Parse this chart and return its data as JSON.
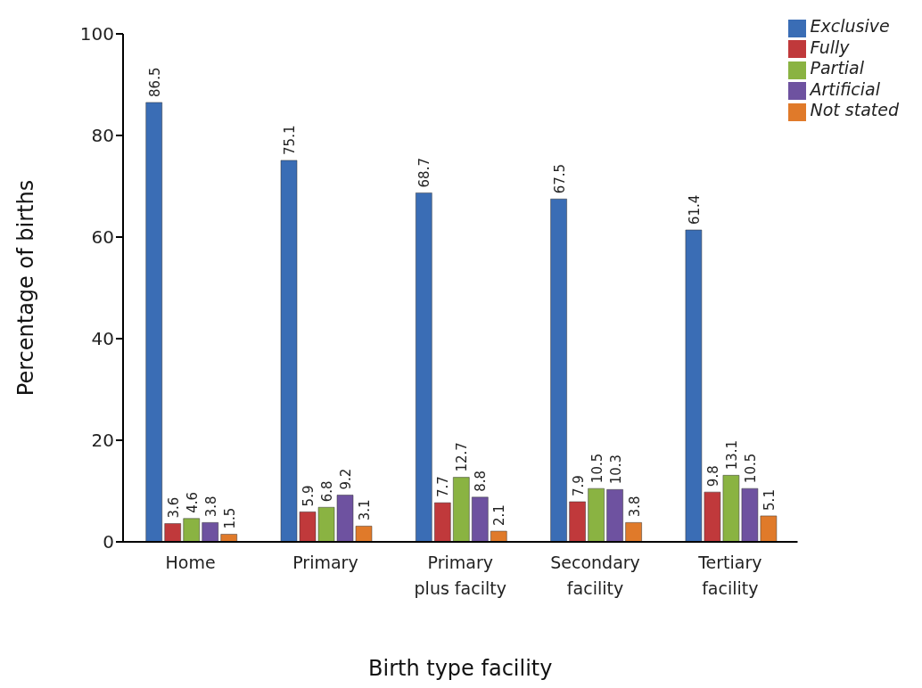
{
  "chart_data": {
    "type": "bar",
    "xlabel": "Birth type facility",
    "ylabel": "Percentage of births",
    "categories": [
      "Home",
      "Primary",
      "Primary plus facilty",
      "Secondary facility",
      "Tertiary facility"
    ],
    "series": [
      {
        "name": "Exclusive",
        "color": "#3a6db5",
        "values": [
          86.5,
          75.1,
          68.7,
          67.5,
          61.4
        ]
      },
      {
        "name": "Fully",
        "color": "#c0393b",
        "values": [
          3.6,
          5.9,
          7.7,
          7.9,
          9.8
        ]
      },
      {
        "name": "Partial",
        "color": "#8ab342",
        "values": [
          4.6,
          6.8,
          12.7,
          10.5,
          13.1
        ]
      },
      {
        "name": "Artificial",
        "color": "#6e52a0",
        "values": [
          3.8,
          9.2,
          8.8,
          10.3,
          10.5
        ]
      },
      {
        "name": "Not stated",
        "color": "#e07a2a",
        "values": [
          1.5,
          3.1,
          2.1,
          3.8,
          5.1
        ]
      }
    ],
    "ylim": [
      0,
      100
    ],
    "yticks": [
      0,
      20,
      40,
      60,
      80,
      100
    ],
    "grid": false,
    "legend": "top right",
    "data_labels": true
  }
}
